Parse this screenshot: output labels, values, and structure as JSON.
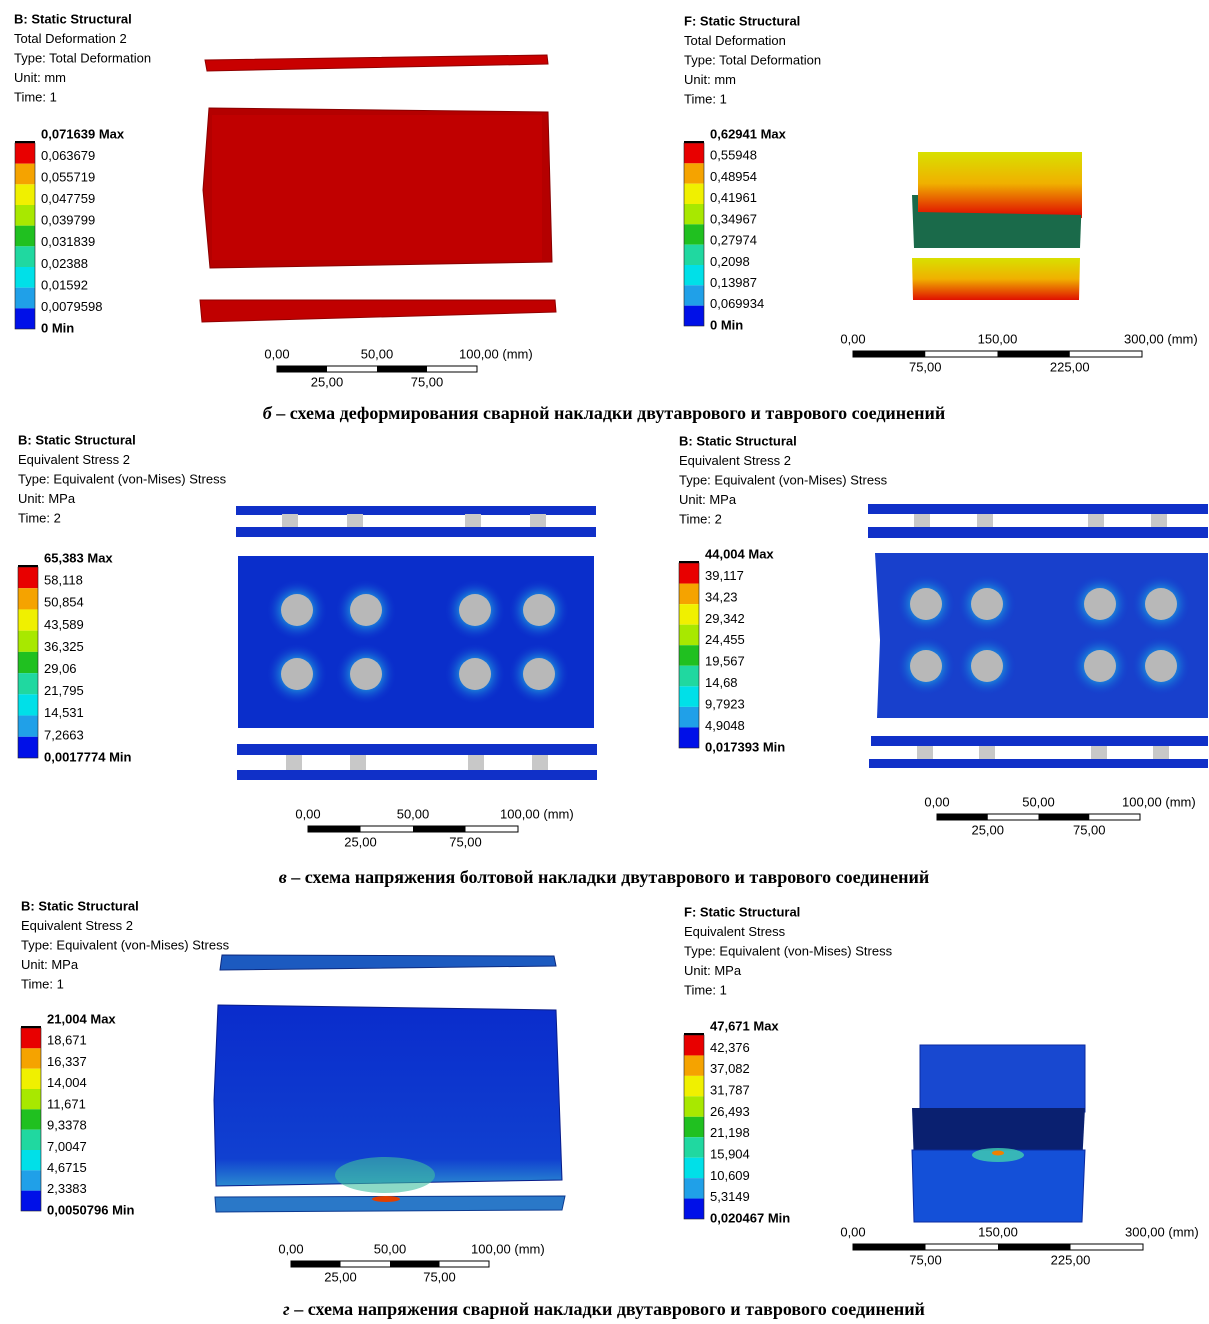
{
  "figure": {
    "panels": [
      {
        "title": "B: Static Structural",
        "result": "Total Deformation 2",
        "type": "Type: Total Deformation",
        "unit": "Unit: mm",
        "time": "Time: 1",
        "legend": [
          "0,071639 Max",
          "0,063679",
          "0,055719",
          "0,047759",
          "0,039799",
          "0,031839",
          "0,02388",
          "0,01592",
          "0,0079598",
          "0 Min"
        ],
        "scale_top": [
          "0,00",
          "50,00",
          "100,00 (mm)"
        ],
        "scale_bottom": [
          "25,00",
          "75,00"
        ]
      },
      {
        "title": "F: Static Structural",
        "result": "Total Deformation",
        "type": "Type: Total Deformation",
        "unit": "Unit: mm",
        "time": "Time: 1",
        "legend": [
          "0,62941 Max",
          "0,55948",
          "0,48954",
          "0,41961",
          "0,34967",
          "0,27974",
          "0,2098",
          "0,13987",
          "0,069934",
          "0 Min"
        ],
        "scale_top": [
          "0,00",
          "150,00",
          "300,00 (mm)"
        ],
        "scale_bottom": [
          "75,00",
          "225,00"
        ]
      },
      {
        "title": "B: Static Structural",
        "result": "Equivalent Stress 2",
        "type": "Type: Equivalent (von-Mises) Stress",
        "unit": "Unit: MPa",
        "time": "Time: 2",
        "legend": [
          "65,383 Max",
          "58,118",
          "50,854",
          "43,589",
          "36,325",
          "29,06",
          "21,795",
          "14,531",
          "7,2663",
          "0,0017774 Min"
        ],
        "scale_top": [
          "0,00",
          "50,00",
          "100,00 (mm)"
        ],
        "scale_bottom": [
          "25,00",
          "75,00"
        ]
      },
      {
        "title": "B: Static Structural",
        "result": "Equivalent Stress 2",
        "type": "Type: Equivalent (von-Mises) Stress",
        "unit": "Unit: MPa",
        "time": "Time: 2",
        "legend": [
          "44,004 Max",
          "39,117",
          "34,23",
          "29,342",
          "24,455",
          "19,567",
          "14,68",
          "9,7923",
          "4,9048",
          "0,017393 Min"
        ],
        "scale_top": [
          "0,00",
          "50,00",
          "100,00 (mm)"
        ],
        "scale_bottom": [
          "25,00",
          "75,00"
        ]
      },
      {
        "title": "B: Static Structural",
        "result": "Equivalent Stress 2",
        "type": "Type: Equivalent (von-Mises) Stress",
        "unit": "Unit: MPa",
        "time": "Time: 1",
        "legend": [
          "21,004 Max",
          "18,671",
          "16,337",
          "14,004",
          "11,671",
          "9,3378",
          "7,0047",
          "4,6715",
          "2,3383",
          "0,0050796 Min"
        ],
        "scale_top": [
          "0,00",
          "50,00",
          "100,00 (mm)"
        ],
        "scale_bottom": [
          "25,00",
          "75,00"
        ]
      },
      {
        "title": "F: Static Structural",
        "result": "Equivalent Stress",
        "type": "Type: Equivalent (von-Mises) Stress",
        "unit": "Unit: MPa",
        "time": "Time: 1",
        "legend": [
          "47,671 Max",
          "42,376",
          "37,082",
          "31,787",
          "26,493",
          "21,198",
          "15,904",
          "10,609",
          "5,3149",
          "0,020467 Min"
        ],
        "scale_top": [
          "0,00",
          "150,00",
          "300,00 (mm)"
        ],
        "scale_bottom": [
          "75,00",
          "225,00"
        ]
      }
    ],
    "captions": [
      {
        "letter": "б",
        "text": " – схема деформирования сварной накладки двутаврового и таврового соединений"
      },
      {
        "letter": "в",
        "text": " – схема напряжения болтовой накладки двутаврового и таврового соединений"
      },
      {
        "letter": "г",
        "text": " – схема напряжения сварной накладки двутаврового и таврового соединений"
      }
    ]
  }
}
